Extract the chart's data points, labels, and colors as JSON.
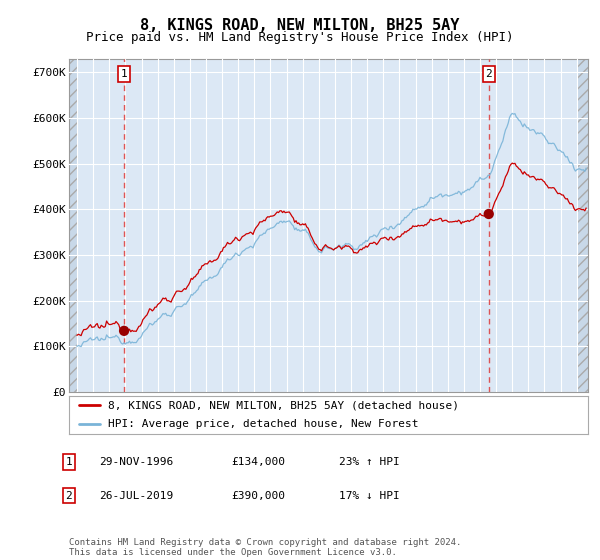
{
  "title": "8, KINGS ROAD, NEW MILTON, BH25 5AY",
  "subtitle": "Price paid vs. HM Land Registry's House Price Index (HPI)",
  "ylabel_ticks": [
    "£0",
    "£100K",
    "£200K",
    "£300K",
    "£400K",
    "£500K",
    "£600K",
    "£700K"
  ],
  "ytick_vals": [
    0,
    100000,
    200000,
    300000,
    400000,
    500000,
    600000,
    700000
  ],
  "ylim": [
    0,
    730000
  ],
  "xlim_start": 1993.5,
  "xlim_end": 2025.7,
  "legend_line1": "8, KINGS ROAD, NEW MILTON, BH25 5AY (detached house)",
  "legend_line2": "HPI: Average price, detached house, New Forest",
  "sale1_label": "1",
  "sale1_date": "29-NOV-1996",
  "sale1_price": "£134,000",
  "sale1_hpi": "23% ↑ HPI",
  "sale2_label": "2",
  "sale2_date": "26-JUL-2019",
  "sale2_price": "£390,000",
  "sale2_hpi": "17% ↓ HPI",
  "footnote": "Contains HM Land Registry data © Crown copyright and database right 2024.\nThis data is licensed under the Open Government Licence v3.0.",
  "sale1_year": 1996.917,
  "sale1_val": 134000,
  "sale2_year": 2019.542,
  "sale2_val": 390000,
  "hpi_color": "#7ab4d8",
  "price_color": "#cc0000",
  "marker_color": "#990000",
  "vline_color": "#dd4444",
  "grid_color": "#c8d8e8",
  "bg_color": "#dce8f5"
}
